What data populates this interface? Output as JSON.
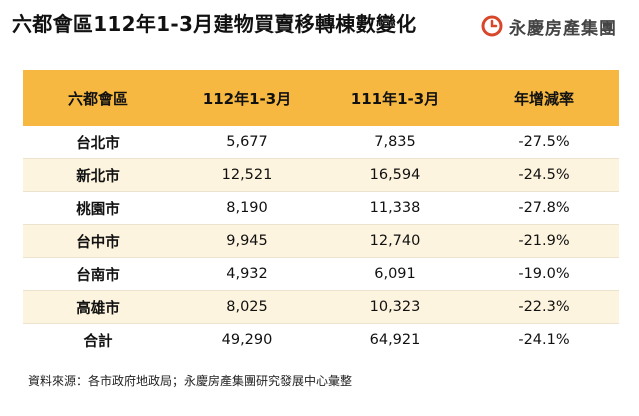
{
  "title": "六都會區112年1-3月建物買賣移轉棟數變化",
  "brand": {
    "name": "永慶房產集團",
    "icon": "yungching-logo-icon",
    "color": "#d9472b"
  },
  "colors": {
    "header": "#f6b840",
    "stripe": "#fdf4df"
  },
  "chart_data": {
    "type": "table",
    "columns": [
      "六都會區",
      "112年1-3月",
      "111年1-3月",
      "年增減率"
    ],
    "rows": [
      [
        "台北市",
        "5,677",
        "7,835",
        "-27.5%"
      ],
      [
        "新北市",
        "12,521",
        "16,594",
        "-24.5%"
      ],
      [
        "桃園市",
        "8,190",
        "11,338",
        "-27.8%"
      ],
      [
        "台中市",
        "9,945",
        "12,740",
        "-21.9%"
      ],
      [
        "台南市",
        "4,932",
        "6,091",
        "-19.0%"
      ],
      [
        "高雄市",
        "8,025",
        "10,323",
        "-22.3%"
      ],
      [
        "合計",
        "49,290",
        "64,921",
        "-24.1%"
      ]
    ]
  },
  "source": "資料來源：各市政府地政局；永慶房產集團研究發展中心彙整"
}
